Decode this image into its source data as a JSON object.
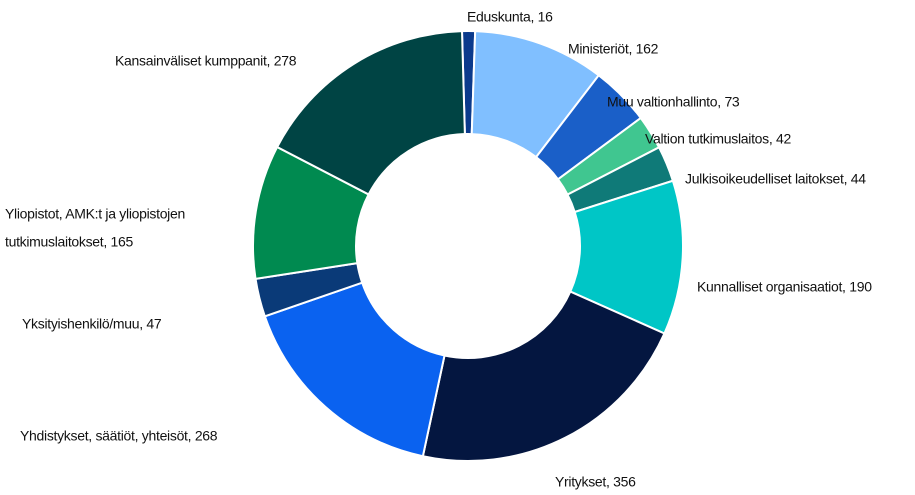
{
  "chart_data": {
    "type": "donut",
    "value_labels": [
      "Eduskunta, 16",
      "Ministeriöt, 162",
      "Muu valtionhallinto, 73",
      "Valtion tutkimuslaitos, 42",
      "Julkisoikeudelliset laitokset, 44",
      "Kunnalliset organisaatiot, 190",
      "Yritykset, 356",
      "Yhdistykset, säätiöt, yhteisöt, 268",
      "Yksityishenkilö/muu, 47",
      [
        "Yliopistot, AMK:t ja yliopistojen",
        "tutkimuslaitokset, 165"
      ],
      "Kansainväliset kumppanit, 278"
    ],
    "values": [
      16,
      162,
      73,
      42,
      44,
      190,
      356,
      268,
      47,
      165,
      278
    ],
    "colors": [
      "#0b3a8c",
      "#80bfff",
      "#1a5fc8",
      "#40c690",
      "#0f7a78",
      "#00c6c6",
      "#041640",
      "#0a62f0",
      "#0a3a78",
      "#008a50",
      "#004444"
    ]
  }
}
